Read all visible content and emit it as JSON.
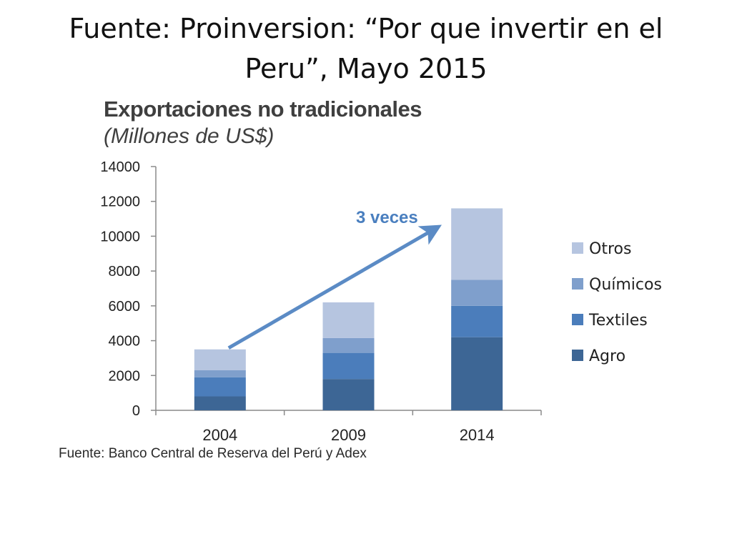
{
  "slide": {
    "title": "Fuente: Proinversion: “Por que invertir en el Peru”, Mayo 2015"
  },
  "source_note": "Fuente: Banco Central de Reserva del Perú y Adex",
  "chart_data": {
    "type": "bar",
    "stacked": true,
    "title": "Exportaciones no tradicionales",
    "subtitle": "(Millones de US$)",
    "categories": [
      "2004",
      "2009",
      "2014"
    ],
    "series": [
      {
        "name": "Agro",
        "values": [
          800,
          1800,
          4200
        ],
        "color": "#3d6695"
      },
      {
        "name": "Textiles",
        "values": [
          1100,
          1500,
          1800
        ],
        "color": "#4b7dbb"
      },
      {
        "name": "Químicos",
        "values": [
          400,
          850,
          1500
        ],
        "color": "#7f9fcc"
      },
      {
        "name": "Otros",
        "values": [
          1200,
          2050,
          4100
        ],
        "color": "#b6c5e0"
      }
    ],
    "ylim": [
      0,
      14000
    ],
    "yticks": [
      0,
      2000,
      4000,
      6000,
      8000,
      10000,
      12000,
      14000
    ],
    "legend_position": "right",
    "grid": false,
    "annotation": {
      "text": "3 veces",
      "color": "#4a7fbf"
    }
  }
}
